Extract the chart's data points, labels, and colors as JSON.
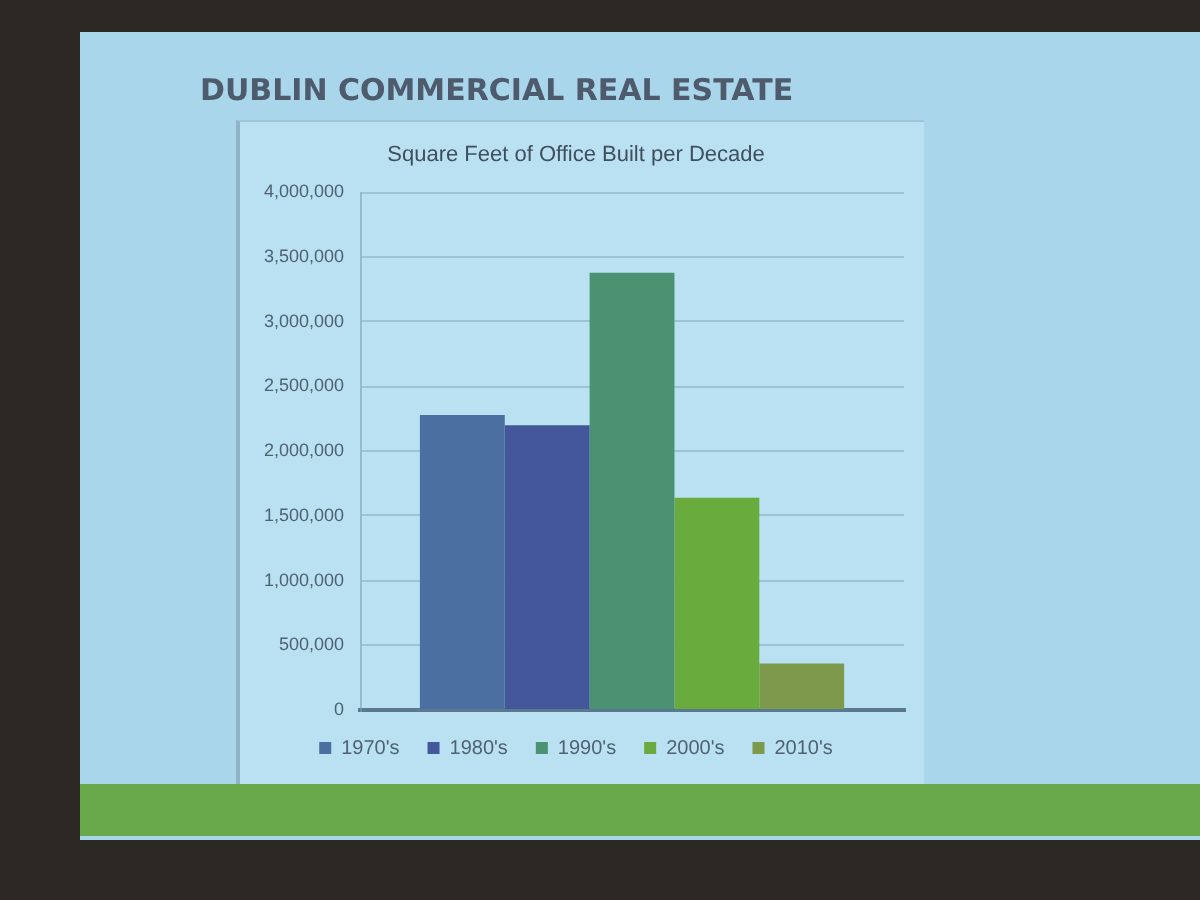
{
  "chart_data": {
    "type": "bar",
    "title": "DUBLIN COMMERCIAL REAL ESTATE",
    "subtitle": "Square Feet of Office Built per Decade",
    "categories": [
      null
    ],
    "series": [
      {
        "name": "1970's",
        "color": "#4a6fa0",
        "values": [
          2280000
        ]
      },
      {
        "name": "1980's",
        "color": "#44579a",
        "values": [
          2200000
        ]
      },
      {
        "name": "1990's",
        "color": "#4a9272",
        "values": [
          3380000
        ]
      },
      {
        "name": "2000's",
        "color": "#6aab3e",
        "values": [
          1640000
        ]
      },
      {
        "name": "2010's",
        "color": "#7d9a4c",
        "values": [
          360000
        ]
      }
    ],
    "ylim": [
      0,
      4000000
    ],
    "yticks": [
      {
        "value": 0,
        "label": "0"
      },
      {
        "value": 500000,
        "label": "500,000"
      },
      {
        "value": 1000000,
        "label": "1,000,000"
      },
      {
        "value": 1500000,
        "label": "1,500,000"
      },
      {
        "value": 2000000,
        "label": "2,000,000"
      },
      {
        "value": 2500000,
        "label": "2,500,000"
      },
      {
        "value": 3000000,
        "label": "3,000,000"
      },
      {
        "value": 3500000,
        "label": "3,500,000"
      },
      {
        "value": 4000000,
        "label": "4,000,000"
      }
    ],
    "grid": "y",
    "legend": "bottom"
  }
}
